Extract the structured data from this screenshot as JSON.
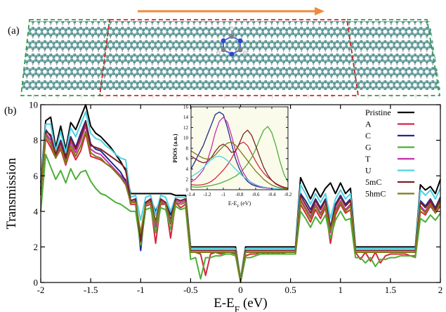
{
  "panel_a_label": "(a)",
  "panel_b_label": "(b)",
  "chart_data": [
    {
      "type": "line",
      "xlabel": "E-E",
      "xlabel_sub": "F",
      "xlabel_unit": " (eV)",
      "ylabel": "Transmission",
      "xlim": [
        -2,
        2
      ],
      "ylim": [
        0,
        10
      ],
      "xticks": [
        -2,
        -1.5,
        -1,
        -0.5,
        0,
        0.5,
        1,
        1.5,
        2
      ],
      "xtick_labels": [
        "-2",
        "-1.5",
        "-1",
        "-0.5",
        "0",
        "0.5",
        "1",
        "1.5",
        "2"
      ],
      "yticks": [
        0,
        2,
        4,
        6,
        8,
        10
      ],
      "ytick_labels": [
        "0",
        "2",
        "4",
        "6",
        "8",
        "10"
      ],
      "grid": false,
      "legend_position": "right",
      "x": [
        -2.0,
        -1.95,
        -1.9,
        -1.85,
        -1.8,
        -1.75,
        -1.7,
        -1.65,
        -1.6,
        -1.55,
        -1.5,
        -1.45,
        -1.4,
        -1.35,
        -1.3,
        -1.25,
        -1.2,
        -1.15,
        -1.1,
        -1.05,
        -1.0,
        -0.95,
        -0.9,
        -0.85,
        -0.8,
        -0.75,
        -0.7,
        -0.65,
        -0.6,
        -0.55,
        -0.5,
        -0.45,
        -0.4,
        -0.35,
        -0.3,
        -0.25,
        -0.2,
        -0.15,
        -0.1,
        -0.05,
        0.0,
        0.05,
        0.1,
        0.15,
        0.2,
        0.25,
        0.3,
        0.35,
        0.4,
        0.45,
        0.5,
        0.55,
        0.6,
        0.65,
        0.7,
        0.75,
        0.8,
        0.85,
        0.9,
        0.95,
        1.0,
        1.05,
        1.1,
        1.15,
        1.2,
        1.25,
        1.3,
        1.35,
        1.4,
        1.45,
        1.5,
        1.55,
        1.6,
        1.65,
        1.7,
        1.75,
        1.8,
        1.85,
        1.9,
        1.95,
        2.0
      ],
      "series": [
        {
          "name": "Pristine",
          "color": "#000000",
          "values": [
            5.6,
            9.1,
            9.3,
            7.6,
            8.8,
            7.5,
            9.0,
            8.6,
            9.3,
            10.0,
            8.8,
            8.4,
            8.2,
            7.9,
            7.6,
            7.2,
            6.8,
            6.3,
            5.0,
            5.0,
            5.0,
            5.0,
            5.0,
            5.0,
            5.0,
            5.0,
            5.0,
            4.9,
            4.9,
            4.9,
            2.0,
            2.0,
            2.0,
            2.0,
            2.0,
            2.0,
            2.0,
            2.0,
            2.0,
            2.0,
            0.2,
            2.0,
            2.0,
            2.0,
            2.0,
            2.0,
            2.0,
            2.0,
            2.0,
            2.0,
            2.0,
            2.0,
            5.9,
            5.3,
            4.7,
            5.3,
            4.8,
            5.3,
            5.6,
            5.0,
            5.6,
            5.0,
            5.3,
            2.0,
            2.0,
            2.0,
            2.0,
            2.0,
            2.0,
            2.0,
            2.0,
            2.0,
            2.0,
            2.0,
            2.0,
            2.0,
            5.5,
            5.2,
            5.4,
            5.0,
            5.8
          ]
        },
        {
          "name": "A",
          "color": "#d7263d",
          "values": [
            4.9,
            8.1,
            7.6,
            7.0,
            7.5,
            6.6,
            7.5,
            6.9,
            7.4,
            8.4,
            7.1,
            7.0,
            6.9,
            6.7,
            6.5,
            6.3,
            6.0,
            5.8,
            4.4,
            4.4,
            2.0,
            4.3,
            4.4,
            2.2,
            4.4,
            4.4,
            2.5,
            4.5,
            4.2,
            4.4,
            1.7,
            1.7,
            1.6,
            0.4,
            1.6,
            1.7,
            1.6,
            1.7,
            1.7,
            1.6,
            0.1,
            1.5,
            1.6,
            1.6,
            1.7,
            1.6,
            1.7,
            1.6,
            1.7,
            1.6,
            1.6,
            1.6,
            4.4,
            3.9,
            3.4,
            4.1,
            3.6,
            4.2,
            2.2,
            3.8,
            4.4,
            3.9,
            4.1,
            1.7,
            1.3,
            1.7,
            1.2,
            1.7,
            1.1,
            1.5,
            1.6,
            1.6,
            1.6,
            1.6,
            1.5,
            1.5,
            4.0,
            3.8,
            4.3,
            3.9,
            4.3
          ]
        },
        {
          "name": "C",
          "color": "#1f2a8c",
          "values": [
            5.3,
            8.6,
            8.2,
            7.2,
            8.0,
            7.1,
            8.2,
            7.6,
            8.4,
            9.1,
            7.8,
            7.5,
            7.4,
            7.1,
            6.8,
            6.5,
            6.2,
            5.7,
            4.6,
            4.7,
            1.8,
            4.5,
            4.7,
            4.0,
            4.7,
            4.5,
            3.8,
            4.7,
            4.6,
            4.7,
            1.8,
            1.8,
            1.8,
            1.8,
            1.8,
            1.8,
            1.8,
            1.8,
            1.8,
            1.8,
            0.1,
            1.8,
            1.8,
            1.8,
            1.8,
            1.8,
            1.8,
            1.8,
            1.8,
            1.8,
            1.8,
            1.8,
            5.0,
            4.6,
            4.1,
            4.7,
            4.2,
            4.7,
            3.1,
            4.4,
            4.9,
            4.4,
            4.7,
            1.8,
            1.8,
            1.8,
            1.8,
            1.8,
            1.8,
            1.8,
            1.8,
            1.8,
            1.8,
            1.8,
            1.8,
            1.8,
            4.6,
            4.3,
            4.7,
            4.2,
            4.8
          ]
        },
        {
          "name": "G",
          "color": "#4caf35",
          "values": [
            4.0,
            7.2,
            6.5,
            5.8,
            6.3,
            5.6,
            6.4,
            5.8,
            6.2,
            6.3,
            5.7,
            5.3,
            5.0,
            4.9,
            4.7,
            4.5,
            4.4,
            4.2,
            4.0,
            4.0,
            2.1,
            4.1,
            4.2,
            2.8,
            4.2,
            4.1,
            3.0,
            4.3,
            4.1,
            4.2,
            1.3,
            1.4,
            0.2,
            1.4,
            1.4,
            1.5,
            1.5,
            1.6,
            1.6,
            1.5,
            0.0,
            1.4,
            1.4,
            1.5,
            1.6,
            1.6,
            1.6,
            1.6,
            1.6,
            1.6,
            1.6,
            1.6,
            4.0,
            3.6,
            3.1,
            3.7,
            3.3,
            3.8,
            2.5,
            3.5,
            4.0,
            3.5,
            3.6,
            1.4,
            1.4,
            1.1,
            1.4,
            0.9,
            1.3,
            1.3,
            1.4,
            1.4,
            1.5,
            1.5,
            1.5,
            1.4,
            3.6,
            3.4,
            3.8,
            3.5,
            3.9
          ]
        },
        {
          "name": "T",
          "color": "#c72dac",
          "values": [
            5.1,
            8.4,
            8.0,
            7.1,
            7.8,
            6.8,
            7.9,
            7.3,
            8.0,
            8.8,
            7.5,
            7.3,
            7.2,
            6.9,
            6.6,
            6.3,
            6.0,
            5.6,
            4.5,
            4.6,
            2.6,
            4.4,
            4.6,
            3.1,
            4.6,
            4.4,
            3.3,
            4.6,
            4.5,
            4.6,
            1.7,
            1.7,
            1.7,
            1.7,
            1.7,
            1.7,
            1.7,
            1.7,
            1.7,
            1.7,
            0.1,
            1.7,
            1.7,
            1.7,
            1.7,
            1.7,
            1.7,
            1.7,
            1.7,
            1.7,
            1.7,
            1.7,
            4.7,
            4.2,
            3.7,
            4.4,
            3.9,
            4.4,
            2.8,
            4.1,
            4.6,
            4.1,
            4.4,
            1.7,
            1.7,
            1.7,
            1.7,
            1.7,
            1.7,
            1.7,
            1.7,
            1.7,
            1.7,
            1.7,
            1.7,
            1.7,
            4.3,
            4.0,
            4.5,
            4.0,
            4.6
          ]
        },
        {
          "name": "U",
          "color": "#4fd1e0",
          "values": [
            5.5,
            8.9,
            8.9,
            7.4,
            8.5,
            7.3,
            8.7,
            8.2,
            8.9,
            9.6,
            8.4,
            8.1,
            8.0,
            7.7,
            7.5,
            7.2,
            7.0,
            6.9,
            4.8,
            4.9,
            3.5,
            4.8,
            4.9,
            3.8,
            4.9,
            4.8,
            4.0,
            4.8,
            4.8,
            4.8,
            1.9,
            1.9,
            1.9,
            1.9,
            1.9,
            1.9,
            1.9,
            1.9,
            1.9,
            1.9,
            0.2,
            1.9,
            1.9,
            1.9,
            1.9,
            1.9,
            1.9,
            1.9,
            1.9,
            1.9,
            1.9,
            1.9,
            5.5,
            5.0,
            4.4,
            5.0,
            4.5,
            5.0,
            3.6,
            4.7,
            5.2,
            4.7,
            5.0,
            1.9,
            1.9,
            1.9,
            1.9,
            1.9,
            1.9,
            1.9,
            1.9,
            1.9,
            1.9,
            1.9,
            1.9,
            1.9,
            5.2,
            4.9,
            5.2,
            4.7,
            5.3
          ]
        },
        {
          "name": "5mC",
          "color": "#7b1f1f",
          "values": [
            5.2,
            8.5,
            8.3,
            7.2,
            7.9,
            7.0,
            8.1,
            7.5,
            8.2,
            9.0,
            7.7,
            7.6,
            7.5,
            7.3,
            7.1,
            6.9,
            6.7,
            6.4,
            4.6,
            4.7,
            2.3,
            4.5,
            4.7,
            3.4,
            4.7,
            4.5,
            3.5,
            4.7,
            4.6,
            4.7,
            1.8,
            1.8,
            1.8,
            1.8,
            1.8,
            1.8,
            1.8,
            1.8,
            1.8,
            1.8,
            0.1,
            1.8,
            1.8,
            1.8,
            1.8,
            1.8,
            1.8,
            1.8,
            1.8,
            1.8,
            1.8,
            1.8,
            4.9,
            4.4,
            3.9,
            4.6,
            4.1,
            4.6,
            3.0,
            4.3,
            4.8,
            4.3,
            4.6,
            1.8,
            1.8,
            1.8,
            1.8,
            1.8,
            1.8,
            1.8,
            1.8,
            1.8,
            1.8,
            1.8,
            1.8,
            1.8,
            4.5,
            4.2,
            4.6,
            4.1,
            4.7
          ]
        },
        {
          "name": "5hmC",
          "color": "#7d7a16",
          "values": [
            5.0,
            8.3,
            7.8,
            7.0,
            7.6,
            6.7,
            7.7,
            7.1,
            7.7,
            8.5,
            7.3,
            7.1,
            7.0,
            6.7,
            6.5,
            6.2,
            5.9,
            5.5,
            4.5,
            4.5,
            2.8,
            4.4,
            4.5,
            3.3,
            4.5,
            4.4,
            3.4,
            4.5,
            4.4,
            4.5,
            1.7,
            1.7,
            1.7,
            1.7,
            1.7,
            1.7,
            1.7,
            1.7,
            1.7,
            1.7,
            0.1,
            1.7,
            1.7,
            1.7,
            1.7,
            1.7,
            1.7,
            1.7,
            1.7,
            1.7,
            1.7,
            1.7,
            4.6,
            4.1,
            3.6,
            4.3,
            3.8,
            4.3,
            2.9,
            4.0,
            4.5,
            4.0,
            4.3,
            1.7,
            1.7,
            1.7,
            1.7,
            1.7,
            1.7,
            1.7,
            1.7,
            1.7,
            1.7,
            1.7,
            1.7,
            1.7,
            4.2,
            3.9,
            4.4,
            3.9,
            4.5
          ]
        }
      ]
    },
    {
      "type": "line",
      "xlabel": "E-E",
      "xlabel_sub": "F",
      "xlabel_unit": " (eV)",
      "ylabel": "PDOS (a.u.)",
      "xlim": [
        -1.4,
        -0.2
      ],
      "ylim": [
        0,
        16
      ],
      "xticks": [
        -1.4,
        -1.2,
        -1.0,
        -0.8,
        -0.6,
        -0.4,
        -0.2
      ],
      "xtick_labels": [
        "-1.4",
        "-1.2",
        "-1",
        "-0.8",
        "-0.6",
        "-0.4",
        "-0.2"
      ],
      "yticks": [
        0,
        2,
        4,
        6,
        8,
        10,
        12,
        14,
        16
      ],
      "ytick_labels": [
        "0",
        "2",
        "4",
        "6",
        "8",
        "10",
        "12",
        "14",
        "16"
      ],
      "grid": false,
      "x": [
        -1.4,
        -1.35,
        -1.3,
        -1.25,
        -1.2,
        -1.15,
        -1.1,
        -1.05,
        -1.0,
        -0.95,
        -0.9,
        -0.85,
        -0.8,
        -0.75,
        -0.7,
        -0.65,
        -0.6,
        -0.55,
        -0.5,
        -0.45,
        -0.4,
        -0.35,
        -0.3,
        -0.25,
        -0.2
      ],
      "series": [
        {
          "name": "A",
          "color": "#d7263d",
          "values": [
            1.0,
            0.9,
            0.9,
            1.0,
            1.2,
            1.6,
            2.2,
            3.0,
            3.8,
            4.8,
            6.0,
            7.5,
            8.8,
            9.2,
            8.5,
            7.0,
            5.5,
            4.2,
            3.2,
            2.4,
            1.8,
            1.2,
            0.8,
            0.5,
            0.3
          ]
        },
        {
          "name": "C",
          "color": "#1f2a8c",
          "values": [
            4.0,
            5.5,
            7.0,
            8.5,
            10.5,
            12.5,
            14.5,
            15.0,
            14.5,
            12.0,
            9.0,
            6.0,
            4.0,
            2.5,
            1.6,
            1.0,
            0.7,
            0.5,
            0.4,
            0.3,
            0.2,
            0.2,
            0.1,
            0.1,
            0.1
          ]
        },
        {
          "name": "G",
          "color": "#4caf35",
          "values": [
            0.6,
            0.5,
            0.5,
            0.6,
            0.7,
            0.8,
            1.0,
            1.2,
            1.5,
            1.8,
            2.2,
            2.6,
            3.2,
            4.0,
            5.0,
            6.2,
            7.8,
            9.8,
            11.5,
            12.2,
            11.0,
            8.5,
            5.5,
            3.0,
            1.5
          ]
        },
        {
          "name": "T",
          "color": "#c72dac",
          "values": [
            1.5,
            2.0,
            2.8,
            3.8,
            5.5,
            8.0,
            11.0,
            13.2,
            14.0,
            13.0,
            10.5,
            7.5,
            5.0,
            3.2,
            2.0,
            1.3,
            0.9,
            0.6,
            0.4,
            0.3,
            0.2,
            0.2,
            0.1,
            0.1,
            0.1
          ]
        },
        {
          "name": "U",
          "color": "#4fd1e0",
          "values": [
            2.5,
            3.0,
            3.5,
            4.2,
            5.0,
            5.8,
            6.3,
            6.5,
            6.2,
            5.6,
            4.8,
            4.0,
            3.2,
            2.5,
            1.9,
            1.4,
            1.0,
            0.7,
            0.5,
            0.4,
            0.3,
            0.2,
            0.2,
            0.1,
            0.1
          ]
        },
        {
          "name": "5mC",
          "color": "#7b1f1f",
          "values": [
            6.5,
            6.0,
            5.5,
            5.2,
            5.4,
            6.2,
            7.4,
            8.4,
            8.8,
            8.2,
            7.2,
            7.4,
            9.0,
            10.8,
            11.5,
            10.5,
            8.5,
            6.3,
            4.3,
            2.8,
            1.8,
            1.1,
            0.7,
            0.4,
            0.3
          ]
        },
        {
          "name": "5hmC",
          "color": "#7d7a16",
          "values": [
            7.5,
            7.0,
            6.5,
            6.1,
            5.9,
            6.1,
            6.7,
            7.6,
            8.4,
            9.0,
            9.2,
            8.6,
            7.6,
            6.6,
            5.6,
            4.6,
            3.6,
            2.8,
            2.0,
            1.4,
            0.9,
            0.6,
            0.4,
            0.2,
            0.2
          ]
        }
      ]
    }
  ]
}
